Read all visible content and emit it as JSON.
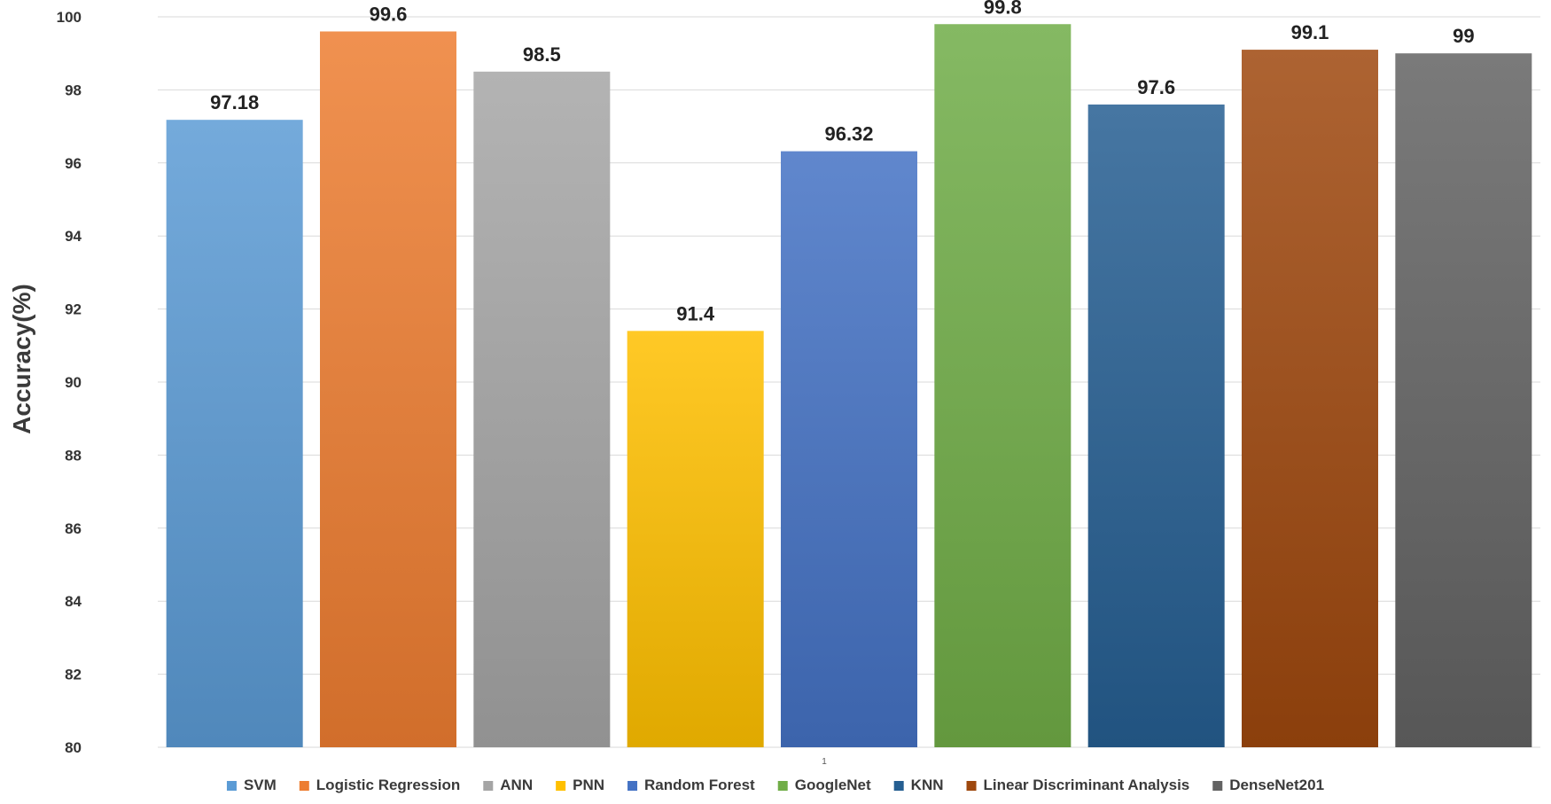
{
  "chart_data": {
    "type": "bar",
    "title": "",
    "xlabel": "",
    "ylabel": "Accuracy(%)",
    "ylim": [
      80,
      100
    ],
    "yticks": [
      80,
      82,
      84,
      86,
      88,
      90,
      92,
      94,
      96,
      98,
      100
    ],
    "x_category_label": "1",
    "grid": true,
    "legend_position": "bottom",
    "series": [
      {
        "name": "SVM",
        "value": 97.18,
        "label": "97.18",
        "color": "#5b9bd5"
      },
      {
        "name": "Logistic Regression",
        "value": 99.6,
        "label": "99.6",
        "color": "#ed7d31"
      },
      {
        "name": "ANN",
        "value": 98.5,
        "label": "98.5",
        "color": "#a5a5a5"
      },
      {
        "name": "PNN",
        "value": 91.4,
        "label": "91.4",
        "color": "#ffc000"
      },
      {
        "name": "Random Forest",
        "value": 96.32,
        "label": "96.32",
        "color": "#4472c4"
      },
      {
        "name": "GoogleNet",
        "value": 99.8,
        "label": "99.8",
        "color": "#70ad47"
      },
      {
        "name": "KNN",
        "value": 97.6,
        "label": "97.6",
        "color": "#255e91"
      },
      {
        "name": "Linear Discriminant Analysis",
        "value": 99.1,
        "label": "99.1",
        "color": "#9e480e"
      },
      {
        "name": "DenseNet201",
        "value": 99,
        "label": "99",
        "color": "#636363"
      }
    ]
  }
}
